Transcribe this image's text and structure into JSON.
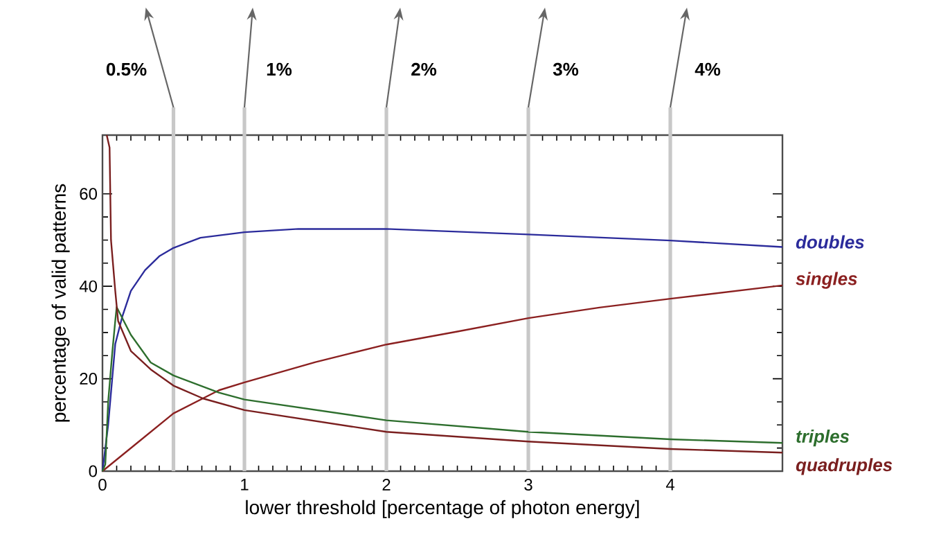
{
  "chart_data": {
    "type": "line",
    "xlabel": "lower threshold  [percentage of photon energy]",
    "ylabel": "percentage of valid patterns",
    "xlim": [
      0,
      4.79
    ],
    "ylim": [
      0,
      72.7
    ],
    "xticks": [
      0,
      1,
      2,
      3,
      4
    ],
    "yticks": [
      0,
      20,
      40,
      60
    ],
    "grid": false,
    "marker": "none",
    "line_style": "solid",
    "series": [
      {
        "name": "doubles",
        "color": "#2b2b9b",
        "x": [
          0,
          0.04,
          0.09,
          0.14,
          0.2,
          0.3,
          0.4,
          0.5,
          0.69,
          1,
          1.38,
          2,
          3,
          4,
          4.79
        ],
        "values": [
          0,
          10,
          27.5,
          33.5,
          39,
          43.5,
          46.5,
          48.3,
          50.5,
          51.7,
          52.4,
          52.4,
          51.2,
          49.9,
          48.5
        ]
      },
      {
        "name": "singles",
        "color": "#8b2020",
        "x": [
          0,
          0.24,
          0.5,
          0.82,
          1,
          1.5,
          2,
          2.5,
          3,
          3.5,
          4,
          4.79
        ],
        "values": [
          0,
          6,
          12.5,
          17.5,
          19.2,
          23.6,
          27.4,
          30.2,
          33.1,
          35.4,
          37.3,
          40.2
        ]
      },
      {
        "name": "triples",
        "color": "#2d6e2d",
        "x": [
          0,
          0.02,
          0.04,
          0.07,
          0.09,
          0.1,
          0.2,
          0.34,
          0.5,
          0.82,
          1,
          2,
          3,
          4,
          4.79
        ],
        "values": [
          0,
          1.5,
          15,
          26,
          32.5,
          35.5,
          29.5,
          23.5,
          20.7,
          17,
          15.5,
          11,
          8.5,
          6.9,
          6.1
        ]
      },
      {
        "name": "quadruples",
        "color": "#7a1f1f",
        "x": [
          0.03,
          0.05,
          0.06,
          0.09,
          0.11,
          0.2,
          0.34,
          0.5,
          0.71,
          1,
          2,
          3,
          4,
          4.79
        ],
        "values": [
          72.7,
          70,
          50,
          39,
          32.5,
          26,
          22,
          18.5,
          15.7,
          13.2,
          8.5,
          6.4,
          4.8,
          4.0
        ]
      }
    ],
    "ref_lines": [
      {
        "axis": "x",
        "value": 0.5,
        "label": "0.5%",
        "color": "#c8c8c8"
      },
      {
        "axis": "x",
        "value": 1,
        "label": "1%",
        "color": "#c8c8c8"
      },
      {
        "axis": "x",
        "value": 2,
        "label": "2%",
        "color": "#c8c8c8"
      },
      {
        "axis": "x",
        "value": 3,
        "label": "3%",
        "color": "#c8c8c8"
      },
      {
        "axis": "x",
        "value": 4,
        "label": "4%",
        "color": "#c8c8c8"
      }
    ]
  }
}
